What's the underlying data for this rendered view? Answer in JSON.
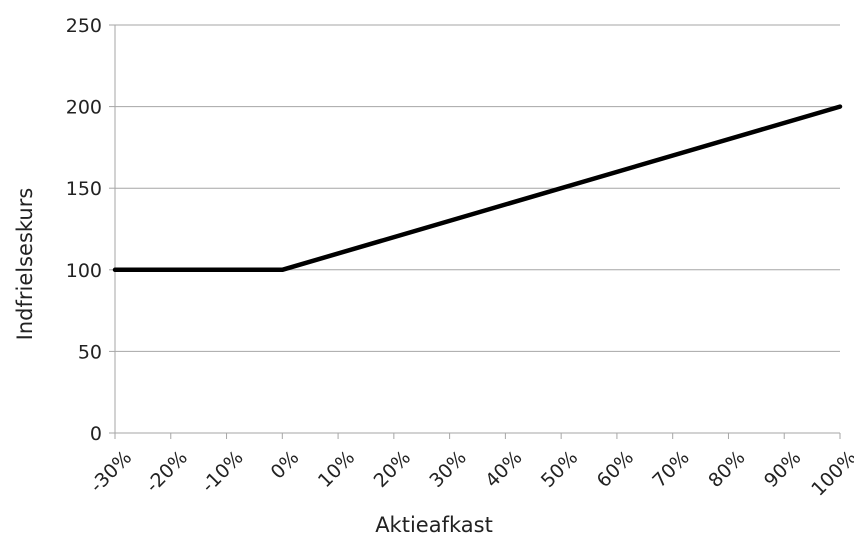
{
  "chart_data": {
    "type": "line",
    "xlabel": "Aktieafkast",
    "ylabel": "Indfrielseskurs",
    "x_tick_labels": [
      "-30%",
      "-20%",
      "-10%",
      "0%",
      "10%",
      "20%",
      "30%",
      "40%",
      "50%",
      "60%",
      "70%",
      "80%",
      "90%",
      "100%"
    ],
    "xlim": [
      -30,
      100
    ],
    "ylim": [
      0,
      250
    ],
    "y_ticks": [
      0,
      50,
      100,
      150,
      200,
      250
    ],
    "grid": "horizontal",
    "legend": "none",
    "series": [
      {
        "x": [
          -30,
          0,
          100
        ],
        "y": [
          100,
          100,
          200
        ],
        "color": "#000000"
      }
    ]
  }
}
